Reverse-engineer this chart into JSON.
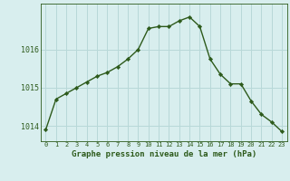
{
  "x": [
    0,
    1,
    2,
    3,
    4,
    5,
    6,
    7,
    8,
    9,
    10,
    11,
    12,
    13,
    14,
    15,
    16,
    17,
    18,
    19,
    20,
    21,
    22,
    23
  ],
  "y": [
    1013.9,
    1014.7,
    1014.85,
    1015.0,
    1015.15,
    1015.3,
    1015.4,
    1015.55,
    1015.75,
    1016.0,
    1016.55,
    1016.6,
    1016.6,
    1016.75,
    1016.85,
    1016.6,
    1015.75,
    1015.35,
    1015.1,
    1015.1,
    1014.65,
    1014.3,
    1014.1,
    1013.85
  ],
  "line_color": "#2d5a1b",
  "marker_color": "#2d5a1b",
  "bg_color": "#d8eeee",
  "grid_major_color": "#b8d8d8",
  "grid_minor_color": "#ccdddd",
  "xlabel": "Graphe pression niveau de la mer (hPa)",
  "yticks": [
    1014,
    1015,
    1016
  ],
  "xlim": [
    -0.5,
    23.5
  ],
  "ylim": [
    1013.6,
    1017.2
  ],
  "font_color": "#2d5a1b",
  "tick_fontsize": 5.0,
  "xlabel_fontsize": 6.5
}
